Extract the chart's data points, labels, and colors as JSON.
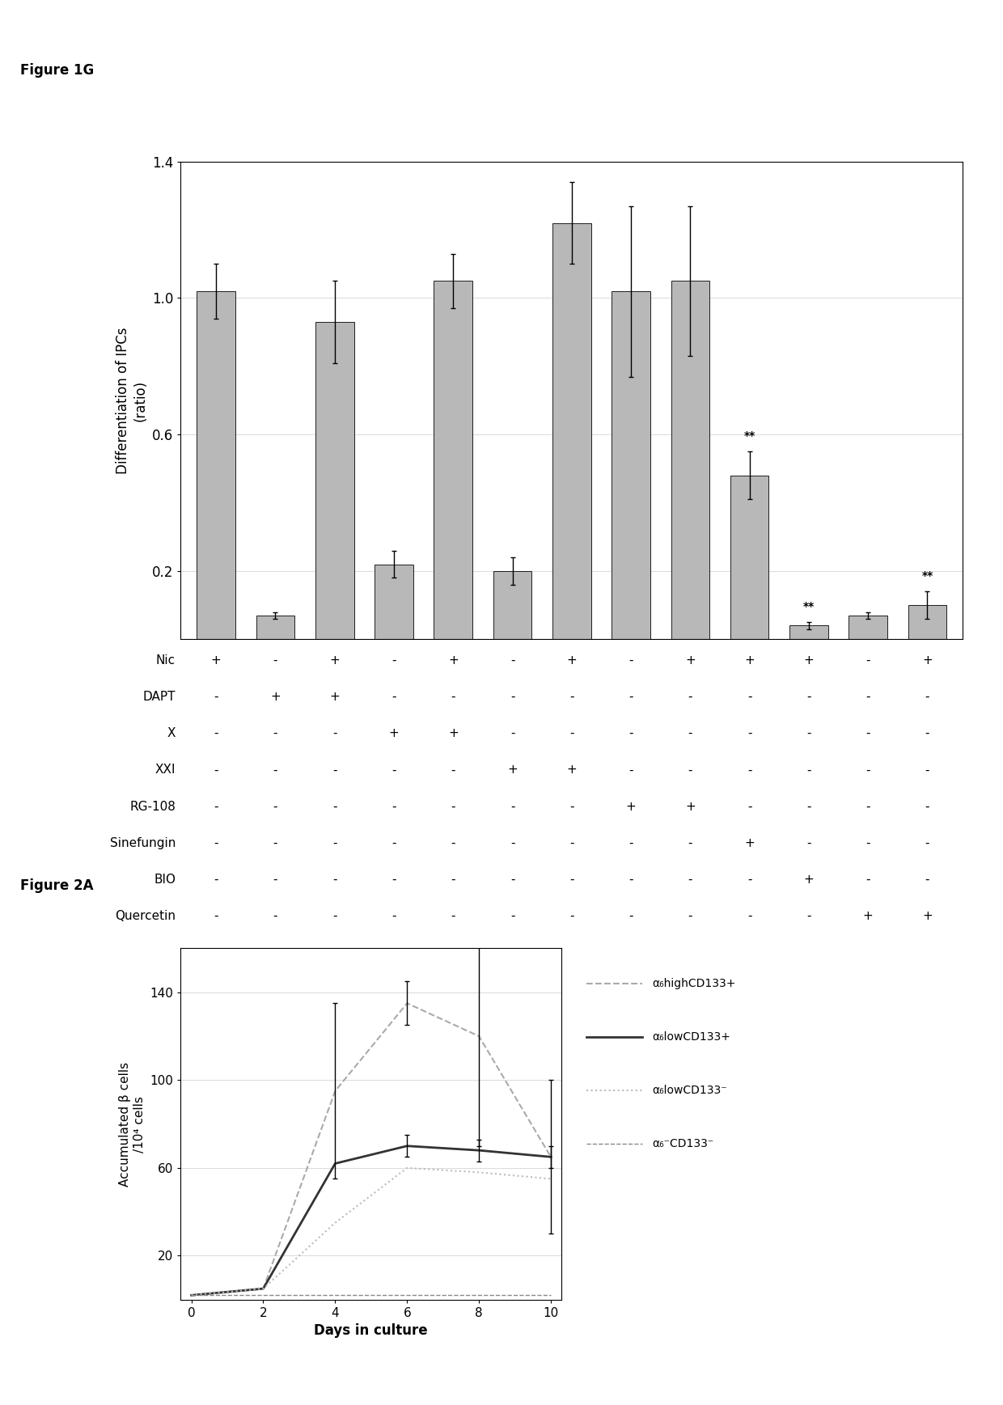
{
  "fig1g": {
    "ylabel": "Differentiation of IPCs\n(ratio)",
    "ylim": [
      0,
      1.4
    ],
    "yticks": [
      0.2,
      0.6,
      1.0,
      1.4
    ],
    "bar_values": [
      1.02,
      0.07,
      0.93,
      0.22,
      1.05,
      0.2,
      1.22,
      1.02,
      1.05,
      0.48,
      0.04,
      0.07,
      0.1
    ],
    "bar_errors": [
      0.08,
      0.01,
      0.12,
      0.04,
      0.08,
      0.04,
      0.12,
      0.25,
      0.22,
      0.07,
      0.01,
      0.01,
      0.04
    ],
    "bar_color": "#b8b8b8",
    "significance": [
      false,
      false,
      false,
      false,
      false,
      false,
      false,
      false,
      false,
      true,
      true,
      false,
      true
    ],
    "conditions": {
      "Nic": [
        "+",
        "-",
        "+",
        "-",
        "+",
        "-",
        "+",
        "-",
        "+",
        "+",
        "+",
        "-",
        "+"
      ],
      "DAPT": [
        "-",
        "+",
        "+",
        "-",
        "-",
        "-",
        "-",
        "-",
        "-",
        "-",
        "-",
        "-",
        "-"
      ],
      "X": [
        "-",
        "-",
        "-",
        "+",
        "+",
        "-",
        "-",
        "-",
        "-",
        "-",
        "-",
        "-",
        "-"
      ],
      "XXI": [
        "-",
        "-",
        "-",
        "-",
        "-",
        "+",
        "+",
        "-",
        "-",
        "-",
        "-",
        "-",
        "-"
      ],
      "RG-108": [
        "-",
        "-",
        "-",
        "-",
        "-",
        "-",
        "-",
        "+",
        "+",
        "-",
        "-",
        "-",
        "-"
      ],
      "Sinefungin": [
        "-",
        "-",
        "-",
        "-",
        "-",
        "-",
        "-",
        "-",
        "-",
        "+",
        "-",
        "-",
        "-"
      ],
      "BIO": [
        "-",
        "-",
        "-",
        "-",
        "-",
        "-",
        "-",
        "-",
        "-",
        "-",
        "+",
        "-",
        "-"
      ],
      "Quercetin": [
        "-",
        "-",
        "-",
        "-",
        "-",
        "-",
        "-",
        "-",
        "-",
        "-",
        "-",
        "+",
        "+"
      ]
    }
  },
  "fig2a": {
    "xlabel": "Days in culture",
    "ylabel1": "Accumulated β cells",
    "ylabel2": "/10⁴ cells",
    "ylim": [
      0,
      160
    ],
    "yticks": [
      20,
      60,
      100,
      140
    ],
    "xticks": [
      0,
      2,
      4,
      6,
      8,
      10
    ],
    "lines": [
      {
        "key": "alpha6highCD133+",
        "days": [
          0,
          2,
          4,
          6,
          8,
          10
        ],
        "values": [
          2,
          5,
          95,
          135,
          120,
          65
        ],
        "errors": [
          0,
          0,
          40,
          10,
          50,
          35
        ],
        "color": "#aaaaaa",
        "linestyle": "--",
        "linewidth": 1.5,
        "label_parts": [
          "α",
          "6",
          "high",
          "CD133",
          "+"
        ]
      },
      {
        "key": "alpha6lowCD133+",
        "days": [
          0,
          2,
          4,
          6,
          8,
          10
        ],
        "values": [
          2,
          5,
          62,
          70,
          68,
          65
        ],
        "errors": [
          0,
          0,
          0,
          5,
          5,
          5
        ],
        "color": "#333333",
        "linestyle": "-",
        "linewidth": 2.0,
        "label_parts": [
          "α",
          "6",
          "low",
          "CD133",
          "+"
        ]
      },
      {
        "key": "alpha6lowCD133-",
        "days": [
          0,
          2,
          4,
          6,
          8,
          10
        ],
        "values": [
          2,
          5,
          35,
          60,
          58,
          55
        ],
        "errors": [
          0,
          0,
          0,
          0,
          0,
          0
        ],
        "color": "#bbbbbb",
        "linestyle": ":",
        "linewidth": 1.5,
        "label_parts": [
          "α",
          "6",
          "low",
          "CD133",
          "-"
        ]
      },
      {
        "key": "alpha6-CD133-",
        "days": [
          0,
          2,
          4,
          6,
          8,
          10
        ],
        "values": [
          2,
          2,
          2,
          2,
          2,
          2
        ],
        "errors": [
          0,
          0,
          0,
          0,
          0,
          0
        ],
        "color": "#888888",
        "linestyle": "--",
        "linewidth": 1.0,
        "label_parts": [
          "α",
          "6",
          "-",
          "CD133",
          "-"
        ]
      }
    ]
  }
}
